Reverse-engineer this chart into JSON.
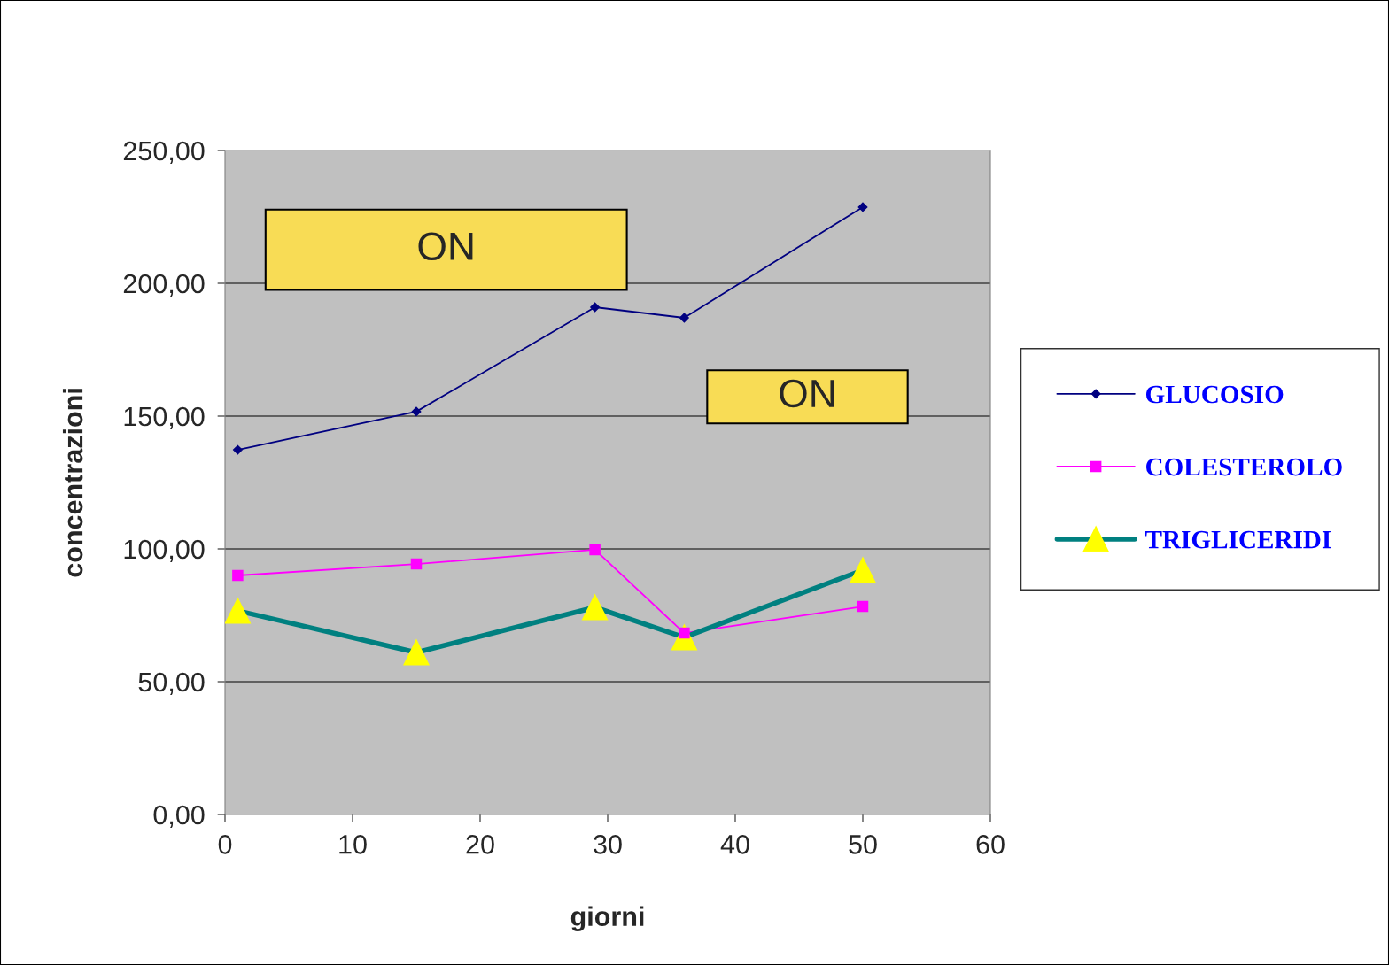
{
  "chart_data": {
    "type": "line",
    "xlabel": "giorni",
    "ylabel": "concentrazioni",
    "x": [
      1,
      15,
      29,
      36,
      50
    ],
    "series": [
      {
        "name": "GLUCOSIO",
        "color": "#000080",
        "marker": "diamond",
        "values": [
          137.3,
          151.7,
          191,
          187,
          228.7
        ]
      },
      {
        "name": "COLESTEROLO",
        "color": "#ff00ff",
        "marker": "square",
        "values": [
          90,
          94.3,
          99.7,
          68.3,
          78.3
        ]
      },
      {
        "name": "TRIGLICERIDI",
        "color": "#008080",
        "marker": "triangle",
        "values": [
          76.7,
          61,
          78,
          66.7,
          92
        ]
      }
    ],
    "xlim": [
      0,
      60
    ],
    "xticks": [
      0,
      10,
      20,
      30,
      40,
      50,
      60
    ],
    "ylim": [
      0,
      250
    ],
    "yticks": [
      {
        "value": 0,
        "label": "0,00"
      },
      {
        "value": 50,
        "label": "50,00"
      },
      {
        "value": 100,
        "label": "100,00"
      },
      {
        "value": 150,
        "label": "150,00"
      },
      {
        "value": 200,
        "label": "200,00"
      },
      {
        "value": 250,
        "label": "250,00"
      }
    ],
    "grid": "y",
    "legend": "right",
    "annotations": [
      "ON",
      "ON"
    ]
  }
}
